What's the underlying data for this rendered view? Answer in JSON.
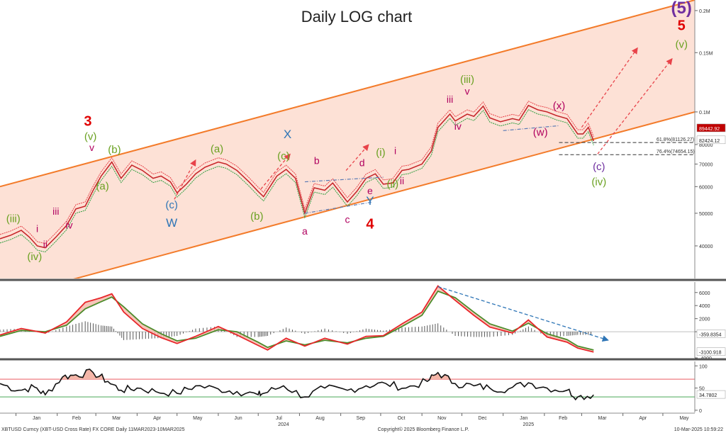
{
  "chart_data": {
    "type": "line",
    "title": "Daily LOG chart",
    "footer": {
      "left": "XBTUSD Curncy (XBT-USD Cross Rate) FX CORE  Daily 11MAR2023-10MAR2025",
      "center": "Copyright© 2025 Bloomberg Finance L.P.",
      "right": "10-Mar-2025 10:59:22"
    },
    "x_axis": {
      "months": [
        "Jan",
        "Feb",
        "Mar",
        "Apr",
        "May",
        "Jun",
        "Jul",
        "Aug",
        "Sep",
        "Oct",
        "Nov",
        "Dec",
        "Jan",
        "Feb",
        "Mar",
        "Apr",
        "May"
      ],
      "years": [
        "2024",
        "2025"
      ],
      "x_range": [
        "2023-12-20",
        "2025-05-25"
      ]
    },
    "price_panel": {
      "scale": "log",
      "ylim": [
        32000,
        215000
      ],
      "y_ticks": [
        {
          "value": 40000,
          "label": "40000"
        },
        {
          "value": 50000,
          "label": "50000"
        },
        {
          "value": 60000,
          "label": "60000"
        },
        {
          "value": 70000,
          "label": "70000"
        },
        {
          "value": 80000,
          "label": "80000"
        },
        {
          "value": 100000,
          "label": "0.1M"
        },
        {
          "value": 150000,
          "label": "0.15M"
        },
        {
          "value": 200000,
          "label": "0.2M"
        }
      ],
      "series": {
        "dates": [
          "2023-12-20",
          "2023-12-28",
          "2024-01-05",
          "2024-01-11",
          "2024-01-17",
          "2024-01-23",
          "2024-01-31",
          "2024-02-08",
          "2024-02-15",
          "2024-02-22",
          "2024-02-28",
          "2024-03-05",
          "2024-03-13",
          "2024-03-20",
          "2024-03-28",
          "2024-04-05",
          "2024-04-13",
          "2024-04-19",
          "2024-04-26",
          "2024-05-01",
          "2024-05-08",
          "2024-05-15",
          "2024-05-22",
          "2024-06-01",
          "2024-06-07",
          "2024-06-15",
          "2024-06-24",
          "2024-07-01",
          "2024-07-05",
          "2024-07-15",
          "2024-07-22",
          "2024-07-29",
          "2024-08-05",
          "2024-08-12",
          "2024-08-20",
          "2024-08-26",
          "2024-09-06",
          "2024-09-13",
          "2024-09-20",
          "2024-09-27",
          "2024-10-03",
          "2024-10-10",
          "2024-10-17",
          "2024-10-22",
          "2024-11-01",
          "2024-11-08",
          "2024-11-13",
          "2024-11-22",
          "2024-11-26",
          "2024-12-05",
          "2024-12-10",
          "2024-12-17",
          "2024-12-22",
          "2024-12-30",
          "2025-01-08",
          "2025-01-13",
          "2025-01-20",
          "2025-01-27",
          "2025-02-03",
          "2025-02-10",
          "2025-02-18",
          "2025-02-26",
          "2025-03-02",
          "2025-03-06",
          "2025-03-10"
        ],
        "close": [
          42000,
          43000,
          44500,
          42500,
          40000,
          39500,
          42500,
          46000,
          51500,
          52500,
          58500,
          64500,
          71000,
          63500,
          69500,
          67000,
          63500,
          64500,
          62000,
          57500,
          61000,
          65500,
          68500,
          71000,
          70000,
          67000,
          62000,
          58000,
          56000,
          64500,
          67500,
          63500,
          50000,
          59500,
          58500,
          61500,
          54000,
          58000,
          63500,
          65500,
          61000,
          61500,
          67000,
          67500,
          70000,
          76500,
          90000,
          98500,
          94000,
          98500,
          97000,
          104000,
          96000,
          93500,
          95500,
          94500,
          104500,
          101500,
          100000,
          97500,
          95500,
          86000,
          86000,
          90000,
          82000
        ]
      },
      "channel": {
        "upper": {
          "start": [
            "2023-12-20",
            60000
          ],
          "end": [
            "2025-05-25",
            215000
          ]
        },
        "lower": {
          "start": [
            "2024-02-15",
            32000
          ],
          "end": [
            "2025-05-25",
            100000
          ]
        }
      },
      "levels": [
        {
          "label": "61.8%(81126.27)",
          "value": 81126.27
        },
        {
          "label": "76.4%(74654.15)",
          "value": 74654.15
        }
      ],
      "price_tags": [
        {
          "label": "89442.92",
          "value": 89442.92,
          "color": "#c00000"
        },
        {
          "label": "82424.12",
          "value": 82424.12,
          "color": "#ffffff"
        }
      ],
      "wave_labels": [
        {
          "text": "(iii)",
          "date": "2023-12-30",
          "price": 47000,
          "color": "#6aa121",
          "size": 15
        },
        {
          "text": "i",
          "date": "2024-01-17",
          "price": 44000,
          "color": "#b0005f",
          "size": 14
        },
        {
          "text": "ii",
          "date": "2024-01-23",
          "price": 39500,
          "color": "#b0005f",
          "size": 14
        },
        {
          "text": "(iv)",
          "date": "2024-01-15",
          "price": 36300,
          "color": "#6aa121",
          "size": 15
        },
        {
          "text": "iii",
          "date": "2024-01-31",
          "price": 49500,
          "color": "#b0005f",
          "size": 14
        },
        {
          "text": "iv",
          "date": "2024-02-10",
          "price": 45000,
          "color": "#b0005f",
          "size": 14
        },
        {
          "text": "3",
          "date": "2024-02-24",
          "price": 91000,
          "color": "#e00000",
          "size": 20
        },
        {
          "text": "(v)",
          "date": "2024-02-26",
          "price": 82500,
          "color": "#6aa121",
          "size": 15
        },
        {
          "text": "v",
          "date": "2024-02-27",
          "price": 76500,
          "color": "#b0005f",
          "size": 14
        },
        {
          "text": "(b)",
          "date": "2024-03-15",
          "price": 75500,
          "color": "#6aa121",
          "size": 15
        },
        {
          "text": "(a)",
          "date": "2024-03-06",
          "price": 58800,
          "color": "#6aa121",
          "size": 15
        },
        {
          "text": "(c)",
          "date": "2024-04-27",
          "price": 51700,
          "color": "#2e75b6",
          "size": 15
        },
        {
          "text": "W",
          "date": "2024-04-27",
          "price": 45600,
          "color": "#2e75b6",
          "size": 17
        },
        {
          "text": "(a)",
          "date": "2024-05-31",
          "price": 75800,
          "color": "#6aa121",
          "size": 15
        },
        {
          "text": "(b)",
          "date": "2024-06-30",
          "price": 47800,
          "color": "#6aa121",
          "size": 15
        },
        {
          "text": "(c)",
          "date": "2024-07-20",
          "price": 72300,
          "color": "#6aa121",
          "size": 15
        },
        {
          "text": "X",
          "date": "2024-07-23",
          "price": 83500,
          "color": "#2e75b6",
          "size": 17
        },
        {
          "text": "a",
          "date": "2024-08-05",
          "price": 43200,
          "color": "#b0005f",
          "size": 14
        },
        {
          "text": "b",
          "date": "2024-08-14",
          "price": 70000,
          "color": "#b0005f",
          "size": 14
        },
        {
          "text": "c",
          "date": "2024-09-06",
          "price": 46800,
          "color": "#b0005f",
          "size": 14
        },
        {
          "text": "d",
          "date": "2024-09-17",
          "price": 69000,
          "color": "#b0005f",
          "size": 14
        },
        {
          "text": "e",
          "date": "2024-09-23",
          "price": 57000,
          "color": "#b0005f",
          "size": 14
        },
        {
          "text": "Y",
          "date": "2024-09-23",
          "price": 53000,
          "color": "#2e75b6",
          "size": 17
        },
        {
          "text": "4",
          "date": "2024-09-23",
          "price": 45000,
          "color": "#e00000",
          "size": 20
        },
        {
          "text": "(i)",
          "date": "2024-10-01",
          "price": 74000,
          "color": "#6aa121",
          "size": 15
        },
        {
          "text": "i",
          "date": "2024-10-12",
          "price": 75000,
          "color": "#b0005f",
          "size": 14
        },
        {
          "text": "(ii)",
          "date": "2024-10-10",
          "price": 59700,
          "color": "#6aa121",
          "size": 15
        },
        {
          "text": "ii",
          "date": "2024-10-17",
          "price": 60900,
          "color": "#b0005f",
          "size": 14
        },
        {
          "text": "iii",
          "date": "2024-11-22",
          "price": 106500,
          "color": "#b0005f",
          "size": 14
        },
        {
          "text": "(iii)",
          "date": "2024-12-05",
          "price": 122000,
          "color": "#6aa121",
          "size": 15
        },
        {
          "text": "v",
          "date": "2024-12-05",
          "price": 112500,
          "color": "#b0005f",
          "size": 14
        },
        {
          "text": "iv",
          "date": "2024-11-28",
          "price": 88500,
          "color": "#b0005f",
          "size": 14
        },
        {
          "text": "(x)",
          "date": "2025-02-12",
          "price": 102000,
          "color": "#b0005f",
          "size": 15
        },
        {
          "text": "(w)",
          "date": "2025-01-29",
          "price": 85000,
          "color": "#b0005f",
          "size": 15
        },
        {
          "text": "(c)",
          "date": "2025-03-14",
          "price": 67200,
          "color": "#7030a0",
          "size": 15
        },
        {
          "text": "(iv)",
          "date": "2025-03-14",
          "price": 60500,
          "color": "#6aa121",
          "size": 15
        },
        {
          "text": "(5)",
          "date": "2025-05-15",
          "price": 196000,
          "color": "#7030a0",
          "size": 24
        },
        {
          "text": "5",
          "date": "2025-05-15",
          "price": 175000,
          "color": "#e00000",
          "size": 20
        },
        {
          "text": "(v)",
          "date": "2025-05-15",
          "price": 155000,
          "color": "#6aa121",
          "size": 15
        }
      ],
      "projections": [
        {
          "from": [
            "2024-04-29",
            55000
          ],
          "to": [
            "2024-05-15",
            72000
          ]
        },
        {
          "from": [
            "2024-07-03",
            59000
          ],
          "to": [
            "2024-07-25",
            75000
          ]
        },
        {
          "from": [
            "2024-09-05",
            67000
          ],
          "to": [
            "2024-09-22",
            80000
          ]
        },
        {
          "from": [
            "2025-03-01",
            90000
          ],
          "to": [
            "2025-04-12",
            155000
          ]
        },
        {
          "from": [
            "2025-03-13",
            75000
          ],
          "to": [
            "2025-05-08",
            144000
          ]
        }
      ],
      "trendlines": [
        {
          "from": [
            "2024-08-05",
            62000
          ],
          "to": [
            "2024-10-03",
            64000
          ]
        },
        {
          "from": [
            "2024-08-05",
            50000
          ],
          "to": [
            "2024-09-25",
            54000
          ]
        },
        {
          "from": [
            "2025-01-01",
            88000
          ],
          "to": [
            "2025-02-12",
            91000
          ]
        }
      ]
    },
    "macd_panel": {
      "ylim": [
        -4000,
        7600
      ],
      "y_ticks": [
        {
          "value": 6000,
          "label": "6000"
        },
        {
          "value": 4000,
          "label": "4000"
        },
        {
          "value": 2000,
          "label": "2000"
        },
        {
          "value": 0,
          "label": "0"
        },
        {
          "value": -4000,
          "label": "-4000"
        }
      ],
      "tags": [
        {
          "label": "-359.8354",
          "value": -359.8354
        },
        {
          "label": "-3100.918",
          "value": -3100.918
        }
      ],
      "dates": [
        "2023-12-20",
        "2024-01-05",
        "2024-01-23",
        "2024-02-08",
        "2024-02-22",
        "2024-03-05",
        "2024-03-13",
        "2024-03-22",
        "2024-04-05",
        "2024-04-19",
        "2024-05-01",
        "2024-05-15",
        "2024-06-01",
        "2024-06-15",
        "2024-07-01",
        "2024-07-08",
        "2024-07-22",
        "2024-08-05",
        "2024-08-20",
        "2024-09-06",
        "2024-09-20",
        "2024-10-03",
        "2024-10-17",
        "2024-11-01",
        "2024-11-13",
        "2024-11-26",
        "2024-12-10",
        "2024-12-22",
        "2025-01-08",
        "2025-01-20",
        "2025-02-03",
        "2025-02-18",
        "2025-02-26",
        "2025-03-10"
      ],
      "macd": [
        -500,
        500,
        -200,
        1500,
        4500,
        5200,
        5800,
        3000,
        500,
        -900,
        -1800,
        -700,
        800,
        -500,
        -2100,
        -2800,
        -1000,
        -2200,
        -1000,
        -1900,
        -700,
        -600,
        1200,
        3000,
        7000,
        4800,
        2500,
        700,
        -200,
        1800,
        -800,
        -1600,
        -2500,
        -3100
      ],
      "signal": [
        -700,
        200,
        0,
        1000,
        3500,
        4600,
        5300,
        3800,
        1200,
        -300,
        -1400,
        -1000,
        300,
        0,
        -1600,
        -2400,
        -1400,
        -2000,
        -1300,
        -1700,
        -1000,
        -700,
        800,
        2500,
        6200,
        5200,
        3000,
        1200,
        100,
        1300,
        -300,
        -1200,
        -2200,
        -2800
      ],
      "trendline": {
        "from": [
          "2024-11-13",
          6900
        ],
        "to": [
          "2025-03-21",
          -1300
        ]
      }
    },
    "rsi_panel": {
      "ylim": [
        -5,
        110
      ],
      "y_ticks": [
        {
          "value": 100,
          "label": "100"
        },
        {
          "value": 50,
          "label": "50"
        },
        {
          "value": 0,
          "label": "0"
        }
      ],
      "overbought": 70,
      "oversold": 30,
      "tag": {
        "label": "34.7802",
        "value": 34.7802
      },
      "dates": [
        "2023-12-20",
        "2024-01-03",
        "2024-01-15",
        "2024-01-23",
        "2024-02-05",
        "2024-02-15",
        "2024-02-28",
        "2024-03-10",
        "2024-03-20",
        "2024-04-01",
        "2024-04-15",
        "2024-05-01",
        "2024-05-15",
        "2024-06-01",
        "2024-06-15",
        "2024-07-01",
        "2024-07-05",
        "2024-07-20",
        "2024-08-05",
        "2024-08-20",
        "2024-09-06",
        "2024-09-20",
        "2024-10-05",
        "2024-10-20",
        "2024-11-05",
        "2024-11-13",
        "2024-11-26",
        "2024-12-10",
        "2024-12-22",
        "2025-01-05",
        "2025-01-20",
        "2025-02-03",
        "2025-02-18",
        "2025-02-26",
        "2025-03-10"
      ],
      "values": [
        60,
        45,
        52,
        35,
        75,
        80,
        85,
        65,
        45,
        50,
        42,
        38,
        55,
        48,
        42,
        35,
        38,
        55,
        30,
        50,
        45,
        55,
        60,
        50,
        65,
        85,
        60,
        55,
        50,
        48,
        62,
        50,
        45,
        30,
        34.78
      ]
    }
  }
}
